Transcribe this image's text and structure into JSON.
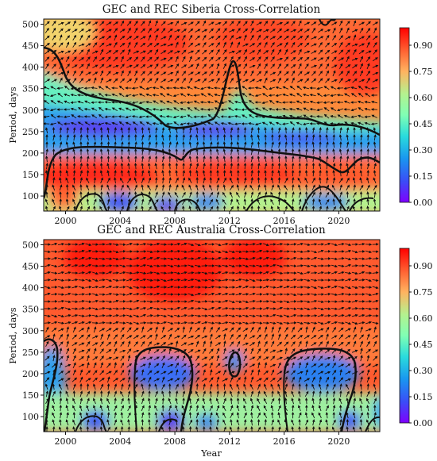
{
  "chart_data": [
    {
      "type": "heatmap",
      "title": "GEC and REC Siberia Cross-Correlation",
      "ylabel": "Period, days",
      "xlim": [
        1998.4,
        2023.0
      ],
      "ylim": [
        65,
        512
      ],
      "x_ticks": [
        2000,
        2004,
        2008,
        2012,
        2016,
        2020
      ],
      "y_ticks": [
        100,
        150,
        200,
        250,
        300,
        350,
        400,
        450,
        500
      ],
      "colorbar": {
        "ticks": [
          "0.00",
          "0.15",
          "0.30",
          "0.45",
          "0.60",
          "0.75",
          "0.90"
        ],
        "range": [
          0,
          1
        ],
        "colormap": "rainbow"
      },
      "description_bands": {
        "upper_contour_period": [
          [
            1998.4,
            440
          ],
          [
            2000,
            420
          ],
          [
            2002,
            330
          ],
          [
            2004,
            300
          ],
          [
            2006,
            290
          ],
          [
            2008,
            270
          ],
          [
            2010,
            270
          ],
          [
            2012,
            320
          ],
          [
            2012.7,
            405
          ],
          [
            2013.5,
            350
          ],
          [
            2014,
            300
          ],
          [
            2016,
            300
          ],
          [
            2017,
            280
          ],
          [
            2018,
            275
          ],
          [
            2020,
            270
          ],
          [
            2022,
            260
          ],
          [
            2023,
            230
          ]
        ],
        "lower_contour_period": [
          [
            1998.4,
            120
          ],
          [
            1999,
            175
          ],
          [
            2000,
            205
          ],
          [
            2004,
            210
          ],
          [
            2008,
            200
          ],
          [
            2010,
            200
          ],
          [
            2011,
            215
          ],
          [
            2013,
            205
          ],
          [
            2016,
            200
          ],
          [
            2018,
            190
          ],
          [
            2020,
            170
          ],
          [
            2021,
            185
          ],
          [
            2022,
            185
          ],
          [
            2023,
            175
          ]
        ],
        "low_corr_band_period": [
          230,
          290
        ],
        "high_corr_band_period": [
          110,
          200
        ]
      }
    },
    {
      "type": "heatmap",
      "title": "GEC and REC Australia Cross-Correlation",
      "xlabel": "Year",
      "ylabel": "Period, days",
      "xlim": [
        1998.4,
        2023.0
      ],
      "ylim": [
        65,
        512
      ],
      "x_ticks": [
        2000,
        2004,
        2008,
        2012,
        2016,
        2020
      ],
      "y_ticks": [
        100,
        150,
        200,
        250,
        300,
        350,
        400,
        450,
        500
      ],
      "colorbar": {
        "ticks": [
          "0.00",
          "0.15",
          "0.30",
          "0.45",
          "0.60",
          "0.75",
          "0.90"
        ],
        "range": [
          0,
          1
        ],
        "colormap": "rainbow"
      },
      "description_bands": {
        "low_corr_regions": [
          {
            "x": [
              1998.4,
              1999.6
            ],
            "period": [
              150,
              270
            ]
          },
          {
            "x": [
              2005.6,
              2009.8
            ],
            "period": [
              150,
              250
            ]
          },
          {
            "x": [
              2012.6,
              2013.6
            ],
            "period": [
              190,
              245
            ]
          },
          {
            "x": [
              2017.6,
              2021.6
            ],
            "period": [
              150,
              245
            ]
          }
        ]
      }
    }
  ]
}
